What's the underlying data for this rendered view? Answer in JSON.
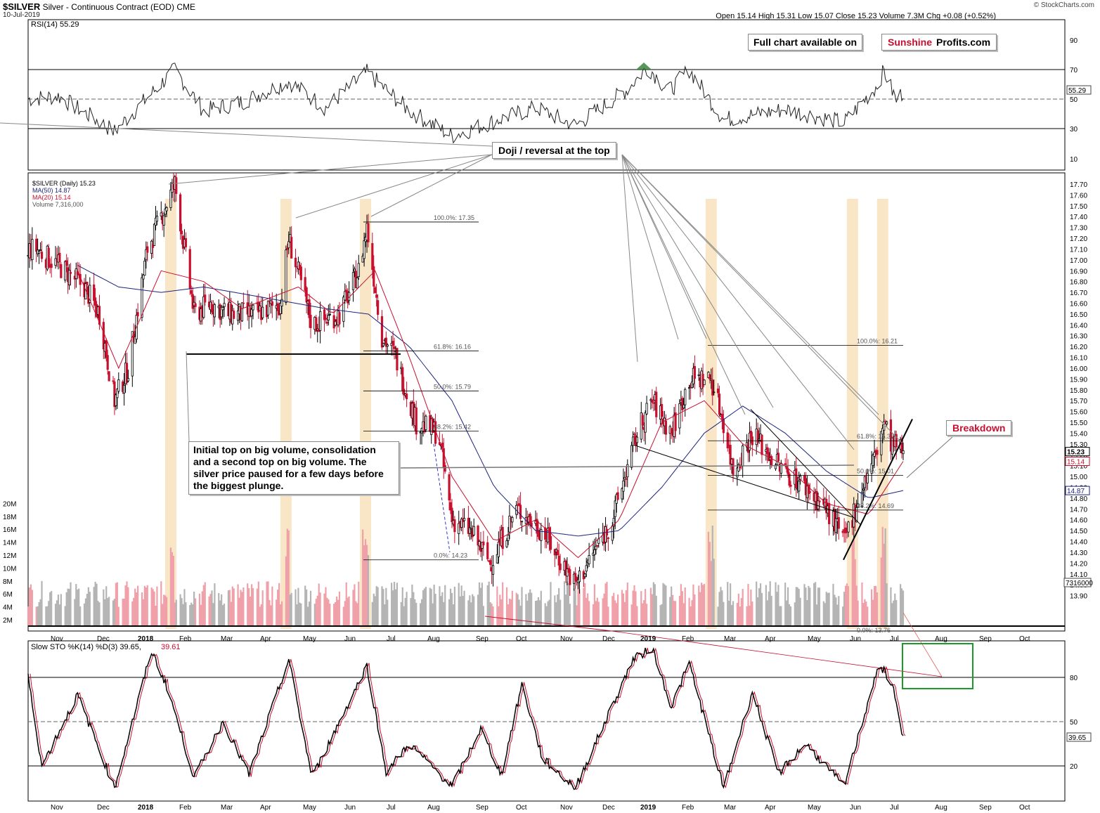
{
  "header": {
    "symbol": "$SILVER",
    "name": "Silver - Continuous Contract (EOD)",
    "exchange": "CME",
    "date": "10-Jul-2019",
    "credit": "© StockCharts.com",
    "stats_line": "Open 15.14  High 15.31  Low 15.07  Close 15.23  Volume 7.3M  Chg +0.08 (+0.52%)"
  },
  "rsi_panel": {
    "label": "RSI(14) 55.29",
    "current_tag": "55.29",
    "ticks": [
      "90",
      "70",
      "50",
      "30",
      "10"
    ]
  },
  "price_panel": {
    "legend": [
      "$SILVER (Daily) 15.23",
      "MA(50) 14.87",
      "MA(20) 15.14",
      "Volume 7,316,000"
    ],
    "price_ticks": [
      "17.70",
      "17.60",
      "17.50",
      "17.40",
      "17.30",
      "17.20",
      "17.10",
      "17.00",
      "16.90",
      "16.80",
      "16.70",
      "16.60",
      "16.50",
      "16.40",
      "16.30",
      "16.20",
      "16.10",
      "16.00",
      "15.90",
      "15.80",
      "15.70",
      "15.60",
      "15.50",
      "15.40",
      "15.30",
      "15.20",
      "15.10",
      "15.00",
      "14.90",
      "14.80",
      "14.70",
      "14.60",
      "14.50",
      "14.40",
      "14.30",
      "14.20",
      "14.10",
      "14.00",
      "13.90"
    ],
    "volume_ticks": [
      "20M",
      "18M",
      "16M",
      "14M",
      "12M",
      "10M",
      "8M",
      "6M",
      "4M",
      "2M"
    ],
    "tags": {
      "close": "15.23",
      "ma20": "15.14",
      "ma50": "14.87",
      "volume": "7316000"
    },
    "fib_left": [
      "100.0%: 17.35",
      "61.8%: 16.16",
      "50.0%: 15.79",
      "38.2%: 15.42",
      "0.0%: 14.23"
    ],
    "fib_right": [
      "100.0%: 16.21",
      "61.8%: 15.33",
      "50.0%: 15.01",
      "38.2%: 14.69",
      "0.0%: 13.76"
    ]
  },
  "x_axis": [
    "Nov",
    "Dec",
    "2018",
    "Feb",
    "Mar",
    "Apr",
    "May",
    "Jun",
    "Jul",
    "Aug",
    "Sep",
    "Oct",
    "Nov",
    "Dec",
    "2019",
    "Feb",
    "Mar",
    "Apr",
    "May",
    "Jun",
    "Jul",
    "Aug",
    "Sep",
    "Oct"
  ],
  "sto_panel": {
    "label_black": "Slow STO %K(14) %D(3) 39.65,",
    "label_red": "39.61",
    "current_tag": "39.65",
    "ticks": [
      "80",
      "50",
      "20"
    ]
  },
  "annotations": {
    "full_chart": "Full chart available on",
    "sunshine": "Sunshine",
    "profits": "Profits.com",
    "doji": "Doji / reversal at the top",
    "note": [
      "Initial top on big volume, consolidation",
      "and a second top on big volume. The",
      "silver price paused for a few days before",
      "the biggest plunge."
    ],
    "breakdown": "Breakdown"
  },
  "colors": {
    "price_bar": "#c8102e",
    "ma50": "#1a237e",
    "ma20": "#c8102e",
    "vol_up": "#f0a0a8",
    "vol_down": "#b4b4b4",
    "highlight": "#f5deb3",
    "brand_red": "#c8102e",
    "box_green": "#1a9a2a"
  },
  "chart_data": {
    "type": "candlestick",
    "title": "$SILVER Silver - Continuous Contract (EOD)",
    "x_range": [
      "2017-10-10",
      "2019-07-10"
    ],
    "y_range": [
      13.85,
      17.75
    ],
    "price_path": [
      [
        "2017-10-16",
        17.1
      ],
      [
        "2017-11-06",
        16.9
      ],
      [
        "2017-11-20",
        16.75
      ],
      [
        "2017-12-01",
        16.5
      ],
      [
        "2017-12-12",
        15.7
      ],
      [
        "2017-12-22",
        16.0
      ],
      [
        "2018-01-05",
        17.1
      ],
      [
        "2018-01-25",
        17.7
      ],
      [
        "2018-02-08",
        16.5
      ],
      [
        "2018-02-20",
        16.6
      ],
      [
        "2018-03-05",
        16.5
      ],
      [
        "2018-03-25",
        16.5
      ],
      [
        "2018-04-12",
        16.6
      ],
      [
        "2018-04-18",
        17.2
      ],
      [
        "2018-05-05",
        16.4
      ],
      [
        "2018-05-25",
        16.5
      ],
      [
        "2018-06-08",
        16.9
      ],
      [
        "2018-06-14",
        17.3
      ],
      [
        "2018-06-25",
        16.3
      ],
      [
        "2018-07-05",
        16.1
      ],
      [
        "2018-07-20",
        15.5
      ],
      [
        "2018-08-05",
        15.4
      ],
      [
        "2018-08-15",
        14.6
      ],
      [
        "2018-08-28",
        14.5
      ],
      [
        "2018-09-12",
        14.2
      ],
      [
        "2018-10-01",
        14.7
      ],
      [
        "2018-10-20",
        14.5
      ],
      [
        "2018-11-13",
        14.0
      ],
      [
        "2018-11-22",
        14.2
      ],
      [
        "2018-12-10",
        14.6
      ],
      [
        "2018-12-28",
        15.4
      ],
      [
        "2019-01-08",
        15.7
      ],
      [
        "2019-01-22",
        15.4
      ],
      [
        "2019-02-04",
        15.9
      ],
      [
        "2019-02-20",
        15.9
      ],
      [
        "2019-03-01",
        15.5
      ],
      [
        "2019-03-08",
        15.05
      ],
      [
        "2019-03-22",
        15.4
      ],
      [
        "2019-04-10",
        15.1
      ],
      [
        "2019-04-30",
        14.9
      ],
      [
        "2019-05-15",
        14.7
      ],
      [
        "2019-05-28",
        14.4
      ],
      [
        "2019-06-10",
        14.9
      ],
      [
        "2019-06-20",
        15.2
      ],
      [
        "2019-06-26",
        15.5
      ],
      [
        "2019-07-01",
        15.3
      ],
      [
        "2019-07-10",
        15.23
      ]
    ],
    "ma50_path": [
      [
        "2017-11-15",
        16.95
      ],
      [
        "2017-12-15",
        16.75
      ],
      [
        "2018-01-15",
        16.7
      ],
      [
        "2018-02-15",
        16.75
      ],
      [
        "2018-04-01",
        16.65
      ],
      [
        "2018-05-15",
        16.55
      ],
      [
        "2018-06-15",
        16.5
      ],
      [
        "2018-07-15",
        16.2
      ],
      [
        "2018-08-15",
        15.7
      ],
      [
        "2018-09-15",
        14.9
      ],
      [
        "2018-10-15",
        14.5
      ],
      [
        "2018-11-15",
        14.45
      ],
      [
        "2018-12-15",
        14.5
      ],
      [
        "2019-01-15",
        14.9
      ],
      [
        "2019-02-15",
        15.4
      ],
      [
        "2019-03-15",
        15.65
      ],
      [
        "2019-04-15",
        15.4
      ],
      [
        "2019-05-15",
        15.05
      ],
      [
        "2019-06-15",
        14.8
      ],
      [
        "2019-07-10",
        14.87
      ]
    ],
    "ma20_path": [
      [
        "2017-11-15",
        16.9
      ],
      [
        "2017-12-15",
        16.0
      ],
      [
        "2018-01-15",
        16.9
      ],
      [
        "2018-02-15",
        16.8
      ],
      [
        "2018-03-15",
        16.55
      ],
      [
        "2018-04-25",
        16.75
      ],
      [
        "2018-05-20",
        16.5
      ],
      [
        "2018-06-20",
        16.9
      ],
      [
        "2018-07-15",
        16.1
      ],
      [
        "2018-08-15",
        15.0
      ],
      [
        "2018-09-15",
        14.4
      ],
      [
        "2018-10-15",
        14.6
      ],
      [
        "2018-11-15",
        14.25
      ],
      [
        "2018-12-15",
        14.6
      ],
      [
        "2019-01-15",
        15.5
      ],
      [
        "2019-02-15",
        15.7
      ],
      [
        "2019-03-15",
        15.3
      ],
      [
        "2019-04-15",
        15.1
      ],
      [
        "2019-05-15",
        14.75
      ],
      [
        "2019-06-15",
        14.65
      ],
      [
        "2019-07-10",
        15.14
      ]
    ],
    "rsi_path": [
      [
        "2017-10-10",
        50
      ],
      [
        "2017-11-01",
        52
      ],
      [
        "2017-12-12",
        28
      ],
      [
        "2018-01-25",
        70
      ],
      [
        "2018-02-15",
        42
      ],
      [
        "2018-03-15",
        48
      ],
      [
        "2018-04-18",
        62
      ],
      [
        "2018-05-15",
        44
      ],
      [
        "2018-06-14",
        68
      ],
      [
        "2018-07-15",
        42
      ],
      [
        "2018-08-15",
        25
      ],
      [
        "2018-09-15",
        35
      ],
      [
        "2018-10-15",
        44
      ],
      [
        "2018-11-13",
        32
      ],
      [
        "2018-12-20",
        56
      ],
      [
        "2019-01-05",
        72
      ],
      [
        "2019-01-20",
        55
      ],
      [
        "2019-02-04",
        70
      ],
      [
        "2019-03-01",
        36
      ],
      [
        "2019-04-15",
        43
      ],
      [
        "2019-05-28",
        34
      ],
      [
        "2019-06-20",
        58
      ],
      [
        "2019-06-26",
        69
      ],
      [
        "2019-07-05",
        49
      ],
      [
        "2019-07-10",
        55
      ]
    ],
    "sto_path": [
      [
        "2017-10-10",
        80
      ],
      [
        "2017-10-20",
        20
      ],
      [
        "2017-11-15",
        68
      ],
      [
        "2017-12-12",
        5
      ],
      [
        "2018-01-08",
        98
      ],
      [
        "2018-01-20",
        72
      ],
      [
        "2018-02-08",
        12
      ],
      [
        "2018-03-01",
        50
      ],
      [
        "2018-03-20",
        14
      ],
      [
        "2018-04-18",
        92
      ],
      [
        "2018-05-05",
        12
      ],
      [
        "2018-06-14",
        88
      ],
      [
        "2018-06-28",
        16
      ],
      [
        "2018-07-15",
        35
      ],
      [
        "2018-08-15",
        6
      ],
      [
        "2018-09-05",
        45
      ],
      [
        "2018-09-20",
        14
      ],
      [
        "2018-10-05",
        75
      ],
      [
        "2018-10-20",
        25
      ],
      [
        "2018-11-13",
        5
      ],
      [
        "2018-12-25",
        92
      ],
      [
        "2019-01-08",
        100
      ],
      [
        "2019-01-22",
        60
      ],
      [
        "2019-02-04",
        90
      ],
      [
        "2019-03-01",
        5
      ],
      [
        "2019-03-22",
        70
      ],
      [
        "2019-04-10",
        15
      ],
      [
        "2019-04-30",
        35
      ],
      [
        "2019-05-28",
        6
      ],
      [
        "2019-06-20",
        82
      ],
      [
        "2019-06-26",
        85
      ],
      [
        "2019-07-02",
        75
      ],
      [
        "2019-07-10",
        39.65
      ]
    ],
    "highlight_dates": [
      "2018-01-22",
      "2018-04-16",
      "2018-06-13",
      "2019-02-20",
      "2019-06-03",
      "2019-06-25"
    ]
  }
}
